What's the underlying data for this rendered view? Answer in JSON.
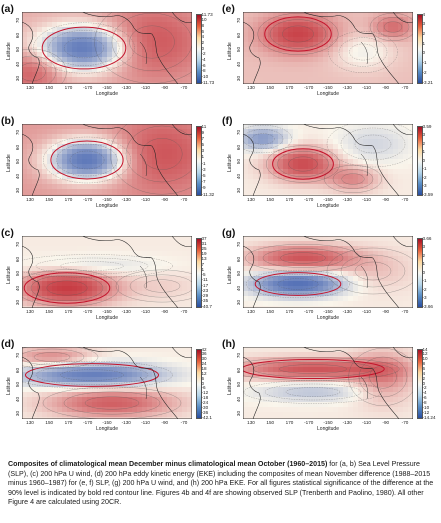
{
  "x_axis": {
    "title": "Longitude",
    "ticks": [
      "130",
      "150",
      "170",
      "-170",
      "-150",
      "-130",
      "-110",
      "-90",
      "-70"
    ]
  },
  "y_axis": {
    "title": "Latitude",
    "ticks": [
      "30",
      "40",
      "50",
      "60",
      "70"
    ]
  },
  "panels": [
    {
      "id": "a",
      "tag": "(a)",
      "colorbar": [
        "11.73",
        "10",
        "8",
        "6",
        "4",
        "2",
        "0",
        "-2",
        "-4",
        "-6",
        "-8",
        "-10",
        "-11.73"
      ]
    },
    {
      "id": "e",
      "tag": "(e)",
      "colorbar": [
        "4",
        "3",
        "2",
        "1",
        "0",
        "-1",
        "-2",
        "-3.21"
      ]
    },
    {
      "id": "b",
      "tag": "(b)",
      "colorbar": [
        "11",
        "9",
        "7",
        "5",
        "3",
        "1",
        "-1",
        "-3",
        "-5",
        "-7",
        "-9",
        "-11.32"
      ]
    },
    {
      "id": "f",
      "tag": "(f)",
      "colorbar": [
        "3.59",
        "3",
        "2",
        "1",
        "0",
        "-1",
        "-2",
        "-3",
        "-3.59"
      ]
    },
    {
      "id": "c",
      "tag": "(c)",
      "colorbar": [
        "37",
        "31",
        "25",
        "19",
        "13",
        "7",
        "1",
        "-5",
        "-11",
        "-17",
        "-23",
        "-29",
        "-35",
        "-40.7"
      ]
    },
    {
      "id": "g",
      "tag": "(g)",
      "colorbar": [
        "3.66",
        "3",
        "2",
        "1",
        "0",
        "-1",
        "-2",
        "-3",
        "-3.66"
      ]
    },
    {
      "id": "d",
      "tag": "(d)",
      "colorbar": [
        "42",
        "36",
        "30",
        "24",
        "18",
        "12",
        "6",
        "0",
        "-6",
        "-12",
        "-18",
        "-24",
        "-30",
        "-36",
        "-42.1"
      ]
    },
    {
      "id": "h",
      "tag": "(h)",
      "colorbar": [
        "14",
        "12",
        "10",
        "8",
        "6",
        "4",
        "2",
        "0",
        "-2",
        "-4",
        "-6",
        "-8",
        "-10",
        "-12",
        "-14.24"
      ]
    }
  ],
  "caption": {
    "bold": "Composites of climatological mean December minus climatological mean October (1960–2015)",
    "text": " for (a, b) Sea Level Pressure (SLP), (c) 200 hPa U wind, (d) 200 hPa eddy kinetic energy (EKE) including the composites of mean November difference (1988–2015 minus 1960–1987) for (e, f) SLP, (g) 200 hPa U wind, and (h) 200 hPa EKE. For all figures statistical significance of the difference at the 90% level is indicated by bold red contour line. Figures 4b and 4f are showing observed SLP (Trenberth and Paolino, 1980). All other Figure 4 are calculated using 20CR."
  }
}
